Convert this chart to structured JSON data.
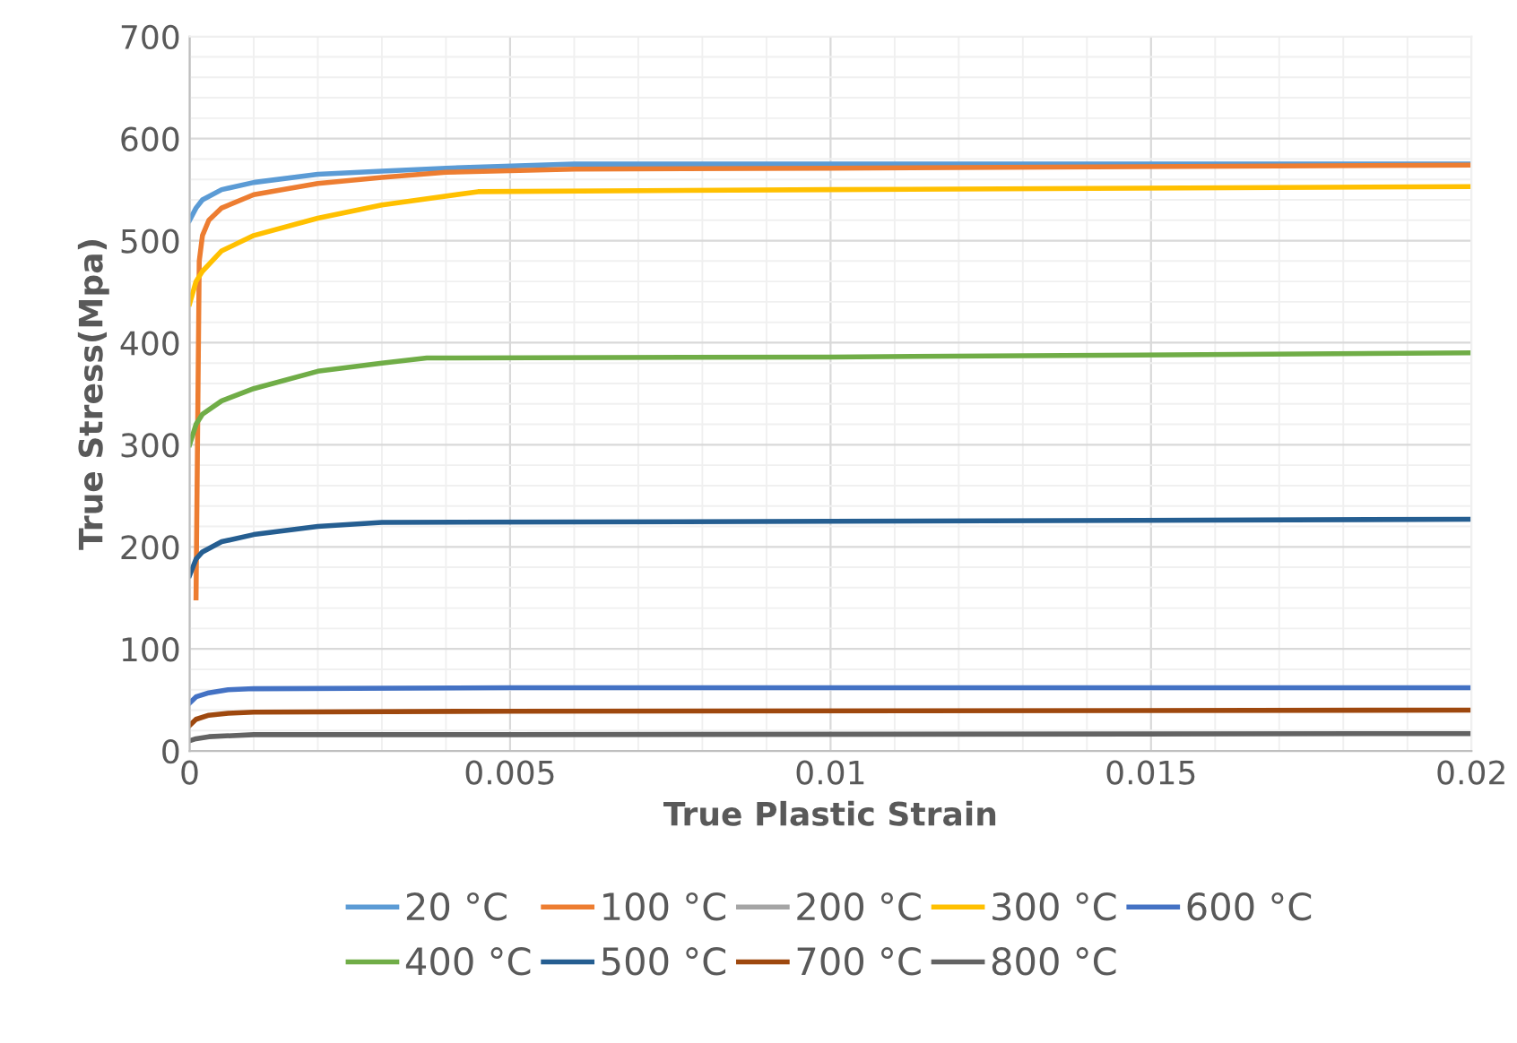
{
  "chart_data": {
    "type": "line",
    "xlabel": "True Plastic Strain",
    "ylabel": "True Stress(Mpa)",
    "xlim": [
      0,
      0.02
    ],
    "ylim": [
      0,
      700
    ],
    "xticks": [
      0,
      0.005,
      0.01,
      0.015,
      0.02
    ],
    "yticks": [
      0,
      100,
      200,
      300,
      400,
      500,
      600,
      700
    ],
    "grid": true,
    "legend": "bottom",
    "marker": "none",
    "line_style": "solid",
    "series": [
      {
        "name": "20 °C",
        "color": "#5b9bd5",
        "x": [
          0,
          0.0001,
          0.0002,
          0.0005,
          0.001,
          0.002,
          0.003,
          0.004,
          0.006,
          0.01,
          0.02
        ],
        "values": [
          520,
          532,
          540,
          550,
          557,
          565,
          568,
          571,
          575,
          575,
          575
        ]
      },
      {
        "name": "100 °C",
        "color": "#ed7d31",
        "x": [
          0.0001,
          0.00015,
          0.0002,
          0.0003,
          0.0005,
          0.001,
          0.002,
          0.003,
          0.004,
          0.006,
          0.01,
          0.02
        ],
        "values": [
          150,
          480,
          505,
          520,
          532,
          545,
          556,
          562,
          567,
          570,
          571,
          574
        ]
      },
      {
        "name": "200 °C",
        "color": "#a5a5a5"
      },
      {
        "name": "300 °C",
        "color": "#ffc000",
        "x": [
          0,
          0.0001,
          0.0002,
          0.0005,
          0.001,
          0.002,
          0.003,
          0.0045,
          0.01,
          0.02
        ],
        "values": [
          438,
          460,
          470,
          490,
          505,
          522,
          535,
          548,
          550,
          553
        ]
      },
      {
        "name": "600 °C",
        "color": "#4472c4",
        "x": [
          0,
          0.0001,
          0.0003,
          0.0006,
          0.001,
          0.005,
          0.02
        ],
        "values": [
          47,
          53,
          57,
          60,
          61,
          62,
          62
        ]
      },
      {
        "name": "400 °C",
        "color": "#70ad47",
        "x": [
          0,
          0.0001,
          0.0002,
          0.0005,
          0.001,
          0.002,
          0.003,
          0.0037,
          0.01,
          0.02
        ],
        "values": [
          300,
          320,
          330,
          343,
          355,
          372,
          380,
          385,
          386,
          390
        ]
      },
      {
        "name": "500 °C",
        "color": "#255e91",
        "x": [
          0,
          0.0001,
          0.0002,
          0.0005,
          0.001,
          0.002,
          0.003,
          0.01,
          0.02
        ],
        "values": [
          172,
          188,
          195,
          205,
          212,
          220,
          224,
          225,
          227
        ]
      },
      {
        "name": "700 °C",
        "color": "#9e480e",
        "x": [
          0,
          0.0001,
          0.0003,
          0.0006,
          0.001,
          0.005,
          0.02
        ],
        "values": [
          25,
          31,
          35,
          37,
          38,
          39,
          40
        ]
      },
      {
        "name": "800 °C",
        "color": "#636363",
        "x": [
          0,
          0.0001,
          0.0003,
          0.001,
          0.005,
          0.02
        ],
        "values": [
          10,
          12,
          14,
          16,
          16,
          17
        ]
      }
    ]
  }
}
